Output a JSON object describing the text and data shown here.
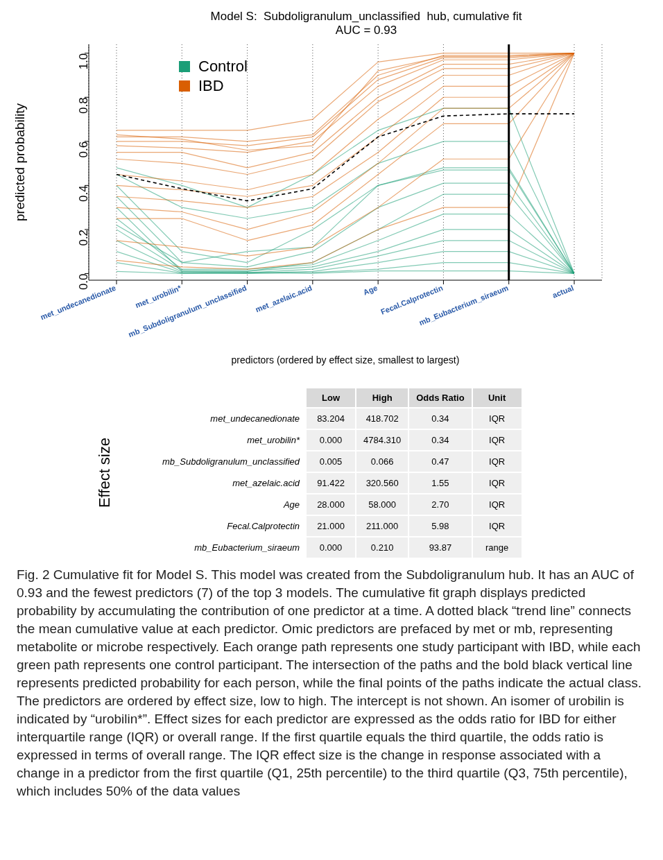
{
  "chart_data": {
    "type": "line",
    "title": "Model S:  Subdoligranulum_unclassified  hub, cumulative fit",
    "subtitle": "AUC = 0.93",
    "xlabel": "predictors (ordered by effect size, smallest to largest)",
    "ylabel": "predicted probability",
    "categories": [
      "met_undecanedionate",
      "met_urobilin*",
      "mb_Subdoligranulum_unclassified",
      "met_azelaic.acid",
      "Age",
      "Fecal.Calprotectin",
      "mb_Eubacterium_siraeum",
      "actual"
    ],
    "ylim": [
      -0.03,
      1.04
    ],
    "yticks": [
      {
        "value": 0,
        "label": "0.0"
      },
      {
        "value": 0.2,
        "label": "0.2"
      },
      {
        "value": 0.4,
        "label": "0.4"
      },
      {
        "value": 0.6,
        "label": "0.6"
      },
      {
        "value": 0.8,
        "label": "0.8"
      },
      {
        "value": 1,
        "label": "1.0"
      }
    ],
    "grid": "x",
    "legend": "top left",
    "ref_lines": [
      {
        "axis": "x",
        "value": "mb_Eubacterium_siraeum",
        "color": "#000000",
        "line_style": "solid"
      }
    ],
    "series": [
      {
        "name": "Control",
        "color": "#1b9e77",
        "values": [
          0.48,
          0.4,
          0.3,
          0.45,
          0.65,
          0.75,
          0.75,
          0
        ]
      },
      {
        "color": "#1b9e77",
        "values": [
          0.45,
          0.3,
          0.25,
          0.3,
          0.5,
          0.6,
          0.6,
          0
        ]
      },
      {
        "color": "#1b9e77",
        "values": [
          0.4,
          0.1,
          0.05,
          0.2,
          0.4,
          0.47,
          0.47,
          0
        ]
      },
      {
        "color": "#1b9e77",
        "values": [
          0.35,
          0.05,
          0.03,
          0.1,
          0.3,
          0.41,
          0.41,
          0
        ]
      },
      {
        "color": "#1b9e77",
        "values": [
          0.3,
          0.01,
          0.01,
          0.05,
          0.2,
          0.36,
          0.36,
          0
        ]
      },
      {
        "color": "#1b9e77",
        "values": [
          0.25,
          0.02,
          0.02,
          0.04,
          0.15,
          0.27,
          0.27,
          0
        ]
      },
      {
        "color": "#1b9e77",
        "values": [
          0.2,
          0.015,
          0.012,
          0.03,
          0.1,
          0.2,
          0.2,
          0
        ]
      },
      {
        "color": "#1b9e77",
        "values": [
          0.15,
          0.008,
          0.004,
          0.02,
          0.08,
          0.15,
          0.15,
          0
        ]
      },
      {
        "color": "#1b9e77",
        "values": [
          0.1,
          0.004,
          0.002,
          0.01,
          0.05,
          0.1,
          0.1,
          0
        ]
      },
      {
        "color": "#1b9e77",
        "values": [
          0.05,
          0.002,
          0,
          0.005,
          0.02,
          0.05,
          0.05,
          0
        ]
      },
      {
        "color": "#1b9e77",
        "values": [
          0.01,
          0,
          0.006,
          0.001,
          0.012,
          0.012,
          0.012,
          0
        ]
      },
      {
        "color": "#1b9e77",
        "values": [
          0.22,
          0.05,
          0.1,
          0.12,
          0.4,
          0.48,
          0.48,
          0
        ]
      },
      {
        "name": "IBD",
        "color": "#d95f02",
        "values": [
          0.65,
          0.65,
          0.65,
          0.7,
          0.96,
          1,
          1,
          1
        ]
      },
      {
        "color": "#d95f02",
        "values": [
          0.62,
          0.62,
          0.6,
          0.63,
          0.9,
          0.99,
          0.99,
          1
        ]
      },
      {
        "color": "#d95f02",
        "values": [
          0.6,
          0.6,
          0.58,
          0.62,
          0.88,
          0.98,
          0.98,
          1
        ]
      },
      {
        "color": "#d95f02",
        "values": [
          0.58,
          0.57,
          0.55,
          0.6,
          0.85,
          0.97,
          0.97,
          1
        ]
      },
      {
        "color": "#d95f02",
        "values": [
          0.55,
          0.55,
          0.48,
          0.55,
          0.8,
          0.95,
          0.95,
          1
        ]
      },
      {
        "color": "#d95f02",
        "values": [
          0.52,
          0.5,
          0.45,
          0.52,
          0.78,
          0.93,
          0.93,
          1
        ]
      },
      {
        "color": "#d95f02",
        "values": [
          0.45,
          0.42,
          0.38,
          0.45,
          0.7,
          0.9,
          0.9,
          1
        ]
      },
      {
        "color": "#d95f02",
        "values": [
          0.4,
          0.38,
          0.35,
          0.4,
          0.62,
          0.85,
          0.85,
          1
        ]
      },
      {
        "color": "#d95f02",
        "values": [
          0.35,
          0.33,
          0.3,
          0.35,
          0.55,
          0.8,
          0.8,
          1
        ]
      },
      {
        "color": "#d95f02",
        "values": [
          0.3,
          0.28,
          0.2,
          0.28,
          0.5,
          0.75,
          0.75,
          1
        ]
      },
      {
        "color": "#d95f02",
        "values": [
          0.25,
          0.25,
          0.15,
          0.22,
          0.45,
          0.68,
          0.68,
          1
        ]
      },
      {
        "color": "#d95f02",
        "values": [
          0.15,
          0.12,
          0.08,
          0.12,
          0.3,
          0.52,
          0.52,
          1
        ]
      },
      {
        "color": "#d95f02",
        "values": [
          0.06,
          0.03,
          0.02,
          0.05,
          0.2,
          0.3,
          0.3,
          1
        ]
      },
      {
        "color": "#d95f02",
        "values": [
          0.63,
          0.61,
          0.56,
          0.58,
          0.92,
          0.985,
          0.985,
          1
        ]
      },
      {
        "color": "#000000",
        "line_style": "dashed",
        "values": [
          0.45,
          0.385,
          0.33,
          0.385,
          0.62,
          0.715,
          0.725,
          0.725
        ]
      }
    ],
    "annotations": [
      "Effect size",
      "Low",
      "High",
      "Odds Ratio",
      "Unit",
      "met_undecanedionate",
      "83.204",
      "418.702",
      "0.34",
      "IQR",
      "met_urobilin*",
      "0.000",
      "4784.310",
      "0.34",
      "IQR",
      "mb_Subdoligranulum_unclassified",
      "0.005",
      "0.066",
      "0.47",
      "IQR",
      "met_azelaic.acid",
      "91.422",
      "320.560",
      "1.55",
      "IQR",
      "Age",
      "28.000",
      "58.000",
      "2.70",
      "IQR",
      "Fecal.Calprotectin",
      "21.000",
      "211.000",
      "5.98",
      "IQR",
      "mb_Eubacterium_siraeum",
      "0.000",
      "0.210",
      "93.87",
      "range",
      "Fig. 2  Cumulative fit for Model S. This model was created from the Subdoligranulum hub. It has an AUC of 0.93 and the fewest predictors (7) of the top 3 models. The cumulative fit graph displays predicted probability by accumulating the contribution of one predictor at a time. A dotted black “trend line” connects the mean cumulative value at each predictor. Omic predictors are prefaced by met or mb, representing metabolite or microbe respectively. Each orange path represents one study participant with IBD, while each green path represents one control participant. The intersection of the paths and the bold black vertical line represents predicted probability for each person, while the final points of the paths indicate the actual class. The predictors are ordered by effect size, low to high. The intercept is not shown. An isomer of urobilin is indicated by “urobilin*”. Effect sizes for each predictor are expressed as the odds ratio for IBD for either interquartile range (IQR) or overall range. If the first quartile equals the third quartile, the odds ratio is expressed in terms of overall range. The IQR effect size is the change in response associated with a change in a predictor from the first quartile (Q1, 25th percentile) to the third quartile (Q3, 75th percentile), which includes 50% of the data values"
    ]
  }
}
